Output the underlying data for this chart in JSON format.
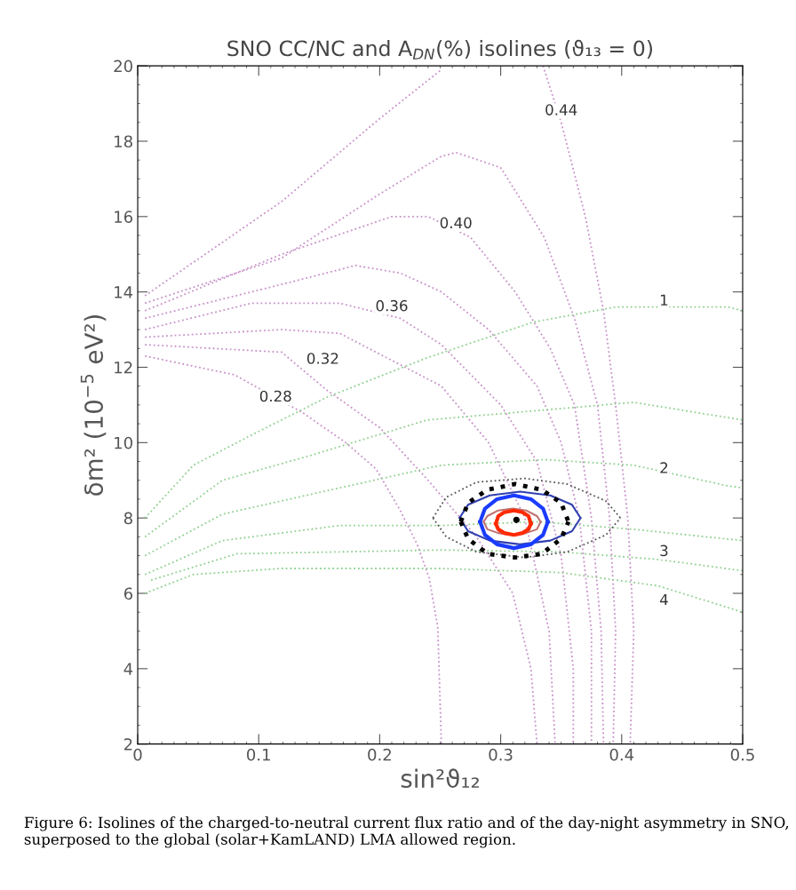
{
  "chart_data": {
    "type": "line",
    "title": "SNO CC/NC and A$_{DN}$(%) isolines (ϑ₁₃ = 0)",
    "xlabel": "sin²ϑ₁₂",
    "ylabel": "δm² (10$^{−5}$ eV²)",
    "xlim": [
      0,
      0.5
    ],
    "ylim": [
      2,
      20
    ],
    "xticks": [
      0,
      0.1,
      0.2,
      0.3,
      0.4,
      0.5
    ],
    "yticks": [
      2,
      4,
      6,
      8,
      10,
      12,
      14,
      16,
      18,
      20
    ],
    "grid": false,
    "line_style": "dotted",
    "series": [
      {
        "color": "#c890c8",
        "x": [
          0.006,
          0.119,
          0.2,
          0.251
        ],
        "values": [
          13.9,
          16.4,
          18.6,
          19.9
        ]
      },
      {
        "color": "#c890c8",
        "x": [
          0.006,
          0.119,
          0.2,
          0.251,
          0.263,
          0.3,
          0.336,
          0.361,
          0.38,
          0.39,
          0.395,
          0.393
        ],
        "values": [
          13.7,
          14.9,
          16.6,
          17.6,
          17.7,
          17.3,
          15.45,
          13.3,
          11.0,
          8.0,
          5.0,
          2.0
        ]
      },
      {
        "color": "#c890c8",
        "x": [
          0.006,
          0.119,
          0.21,
          0.24,
          0.275,
          0.312,
          0.341,
          0.361,
          0.375,
          0.383,
          0.385
        ],
        "values": [
          13.5,
          15.0,
          16.0,
          16.0,
          15.45,
          14.0,
          12.5,
          11.0,
          8.0,
          5.0,
          2.0
        ]
      },
      {
        "color": "#c890c8",
        "x": [
          0.006,
          0.119,
          0.18,
          0.217,
          0.251,
          0.29,
          0.33,
          0.35,
          0.365,
          0.375,
          0.375
        ],
        "values": [
          13.3,
          14.2,
          14.7,
          14.5,
          14.0,
          13.0,
          11.5,
          10.0,
          8.0,
          5.0,
          2.0
        ]
      },
      {
        "color": "#c890c8",
        "x": [
          0.006,
          0.094,
          0.167,
          0.217,
          0.251,
          0.3,
          0.33,
          0.35,
          0.36,
          0.36
        ],
        "values": [
          13.0,
          13.7,
          13.7,
          13.3,
          12.6,
          11.0,
          9.5,
          7.0,
          4.0,
          2.0
        ]
      },
      {
        "color": "#c890c8",
        "x": [
          0.006,
          0.119,
          0.167,
          0.251,
          0.29,
          0.32,
          0.34,
          0.345
        ],
        "values": [
          12.8,
          13.0,
          12.9,
          11.5,
          10.0,
          8.0,
          5.0,
          2.0
        ]
      },
      {
        "color": "#c890c8",
        "x": [
          0.006,
          0.119,
          0.156,
          0.2,
          0.24,
          0.28,
          0.31,
          0.325,
          0.33
        ],
        "values": [
          12.6,
          12.4,
          11.4,
          10.4,
          9.0,
          7.5,
          6.0,
          4.0,
          2.0
        ]
      },
      {
        "color": "#c890c8",
        "x": [
          0.006,
          0.08,
          0.136,
          0.172,
          0.197,
          0.217,
          0.231,
          0.241,
          0.248,
          0.251
        ],
        "values": [
          12.3,
          11.8,
          10.8,
          10.0,
          9.3,
          8.2,
          7.3,
          6.4,
          5.1,
          2.0
        ]
      },
      {
        "color": "#c890c8",
        "x": [
          0.335,
          0.35,
          0.37,
          0.385,
          0.395,
          0.405,
          0.41,
          0.407
        ],
        "values": [
          20.0,
          18.5,
          16.0,
          13.5,
          11.0,
          8.0,
          5.0,
          2.0
        ]
      },
      {
        "color": "#90d090",
        "x": [
          0.006,
          0.046,
          0.094,
          0.156,
          0.239,
          0.327,
          0.395,
          0.488,
          0.5
        ],
        "values": [
          8.0,
          9.4,
          10.2,
          11.2,
          12.25,
          13.2,
          13.6,
          13.6,
          13.5
        ]
      },
      {
        "color": "#90d090",
        "x": [
          0.006,
          0.07,
          0.143,
          0.239,
          0.41,
          0.5
        ],
        "values": [
          7.5,
          9.0,
          9.66,
          10.6,
          11.07,
          10.6
        ]
      },
      {
        "color": "#90d090",
        "x": [
          0.006,
          0.07,
          0.167,
          0.251,
          0.336,
          0.41,
          0.488,
          0.5
        ],
        "values": [
          7.0,
          8.1,
          8.8,
          9.4,
          9.55,
          9.4,
          8.85,
          8.8
        ]
      },
      {
        "color": "#90d090",
        "x": [
          0.006,
          0.07,
          0.167,
          0.251,
          0.33,
          0.41,
          0.5
        ],
        "values": [
          6.5,
          7.4,
          7.8,
          7.8,
          7.9,
          7.7,
          7.4
        ]
      },
      {
        "color": "#90d090",
        "x": [
          0.011,
          0.082,
          0.251,
          0.35,
          0.43,
          0.5
        ],
        "values": [
          6.35,
          7.05,
          7.15,
          7.1,
          6.9,
          6.6
        ]
      },
      {
        "color": "#90d090",
        "x": [
          0.006,
          0.046,
          0.119,
          0.251,
          0.35,
          0.43,
          0.5
        ],
        "values": [
          6.0,
          6.5,
          6.66,
          6.66,
          6.55,
          6.2,
          5.5
        ]
      },
      {
        "color": "#555555",
        "x": [
          0.244,
          0.255,
          0.28,
          0.32,
          0.355,
          0.387,
          0.399
        ],
        "values": [
          8.0,
          8.55,
          8.95,
          9.05,
          8.9,
          8.45,
          8.0
        ]
      },
      {
        "color": "#555555",
        "x": [
          0.244,
          0.255,
          0.28,
          0.32,
          0.355,
          0.387,
          0.399
        ],
        "values": [
          8.0,
          7.5,
          7.1,
          6.95,
          7.1,
          7.55,
          8.0
        ]
      },
      {
        "color": "#3040b0",
        "line_style": "solid",
        "x": [
          0.266,
          0.273,
          0.291,
          0.316,
          0.341,
          0.359,
          0.366
        ],
        "values": [
          8.0,
          8.35,
          8.6,
          8.7,
          8.6,
          8.35,
          8.0
        ]
      },
      {
        "color": "#3040b0",
        "line_style": "solid",
        "x": [
          0.266,
          0.273,
          0.291,
          0.316,
          0.341,
          0.359,
          0.366
        ],
        "values": [
          8.0,
          7.65,
          7.4,
          7.3,
          7.4,
          7.65,
          8.0
        ]
      },
      {
        "color": "#c07070",
        "line_style": "solid",
        "x": [
          0.286,
          0.289,
          0.298,
          0.31,
          0.321,
          0.33,
          0.333
        ],
        "values": [
          7.9,
          8.05,
          8.2,
          8.25,
          8.2,
          8.05,
          7.9
        ]
      },
      {
        "color": "#c07070",
        "line_style": "solid",
        "x": [
          0.286,
          0.289,
          0.298,
          0.31,
          0.321,
          0.33,
          0.333
        ],
        "values": [
          7.9,
          7.7,
          7.6,
          7.55,
          7.6,
          7.7,
          7.9
        ]
      },
      {
        "color": "#000000",
        "x": [
          0.267,
          0.273,
          0.289,
          0.312,
          0.334,
          0.35,
          0.356
        ],
        "values": [
          7.9,
          8.4,
          8.75,
          8.9,
          8.75,
          8.4,
          7.9
        ]
      },
      {
        "color": "#000000",
        "x": [
          0.267,
          0.273,
          0.289,
          0.312,
          0.334,
          0.35,
          0.356
        ],
        "values": [
          7.9,
          7.45,
          7.05,
          6.95,
          7.05,
          7.45,
          7.9
        ]
      },
      {
        "color": "#1a3cff",
        "line_style": "solid",
        "x": [
          0.283,
          0.287,
          0.297,
          0.311,
          0.325,
          0.335,
          0.339
        ],
        "values": [
          7.9,
          8.25,
          8.5,
          8.6,
          8.5,
          8.25,
          7.9
        ]
      },
      {
        "color": "#1a3cff",
        "line_style": "solid",
        "x": [
          0.283,
          0.287,
          0.297,
          0.311,
          0.325,
          0.335,
          0.339
        ],
        "values": [
          7.9,
          7.55,
          7.3,
          7.2,
          7.3,
          7.55,
          7.9
        ]
      },
      {
        "color": "#ff2a00",
        "line_style": "solid",
        "x": [
          0.296,
          0.298,
          0.303,
          0.311,
          0.318,
          0.323,
          0.325
        ],
        "values": [
          7.85,
          8.05,
          8.15,
          8.2,
          8.15,
          8.05,
          7.85
        ]
      },
      {
        "color": "#ff2a00",
        "line_style": "solid",
        "x": [
          0.296,
          0.298,
          0.303,
          0.311,
          0.318,
          0.323,
          0.325
        ],
        "values": [
          7.85,
          7.7,
          7.6,
          7.55,
          7.6,
          7.7,
          7.85
        ]
      },
      {
        "type": "scatter",
        "color": "#000000",
        "marker": "circle",
        "x": [
          0.313
        ],
        "values": [
          7.95
        ]
      }
    ],
    "annotations": [
      {
        "text": "0.28",
        "x": 0.114,
        "y": 11.2
      },
      {
        "text": "0.32",
        "x": 0.153,
        "y": 12.2
      },
      {
        "text": "0.36",
        "x": 0.21,
        "y": 13.6
      },
      {
        "text": "0.40",
        "x": 0.263,
        "y": 15.8
      },
      {
        "text": "0.44",
        "x": 0.35,
        "y": 18.8
      },
      {
        "text": "1",
        "x": 0.435,
        "y": 13.75
      },
      {
        "text": "2",
        "x": 0.435,
        "y": 9.3
      },
      {
        "text": "3",
        "x": 0.435,
        "y": 7.1
      },
      {
        "text": "4",
        "x": 0.435,
        "y": 5.8
      },
      "Figure 6: Isolines of the charged-to-neutral current flux ratio and of the day-night asymmetry in SNO, superposed to the global (solar+KamLAND) LMA allowed region."
    ]
  }
}
